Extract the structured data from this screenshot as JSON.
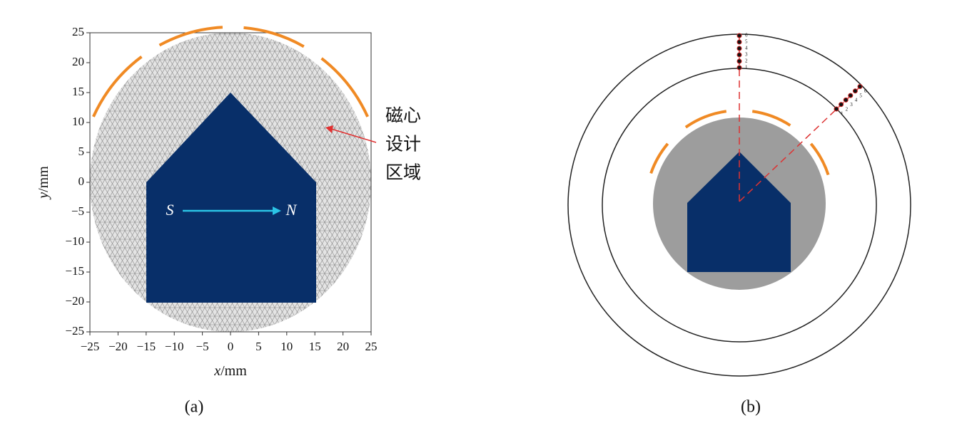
{
  "panel_a": {
    "pole_s": "S",
    "pole_n": "N",
    "x_label": {
      "var": "x",
      "unit": "/mm"
    },
    "y_label": {
      "var": "y",
      "unit": "/mm"
    },
    "xlim": [
      -25,
      25
    ],
    "ylim": [
      -25,
      25
    ],
    "xticks": [
      {
        "value": -25,
        "label": "−25"
      },
      {
        "value": -20,
        "label": "−20"
      },
      {
        "value": -15,
        "label": "−15"
      },
      {
        "value": -10,
        "label": "−10"
      },
      {
        "value": -5,
        "label": "−5"
      },
      0,
      5,
      10,
      15,
      20,
      25
    ],
    "yticks": [
      {
        "value": -25,
        "label": "−25"
      },
      {
        "value": -20,
        "label": "−20"
      },
      {
        "value": -15,
        "label": "−15"
      },
      {
        "value": -10,
        "label": "−10"
      },
      {
        "value": -5,
        "label": "−5"
      },
      0,
      5,
      10,
      15,
      20,
      25
    ],
    "annotation": [
      "磁心",
      "设计",
      "区域"
    ],
    "caption": "(a)"
  },
  "panel_b": {
    "probe_labels": [
      "1",
      "2",
      "3",
      "4",
      "5",
      "6"
    ],
    "caption": "(b)"
  }
}
